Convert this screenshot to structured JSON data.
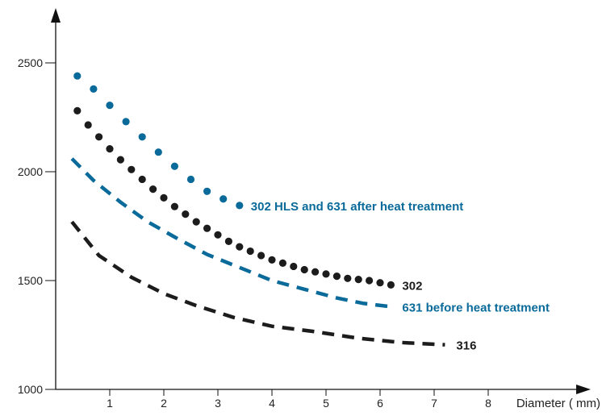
{
  "chart_data": {
    "type": "line",
    "title": "",
    "xlabel": "Diameter ( mm)",
    "ylabel": "",
    "xlim": [
      0,
      9.1
    ],
    "ylim": [
      1000,
      2750
    ],
    "x_ticks": [
      1,
      2,
      3,
      4,
      5,
      6,
      7,
      8
    ],
    "y_ticks": [
      1000,
      1500,
      2000,
      2500
    ],
    "grid": false,
    "legend": "inline labels at line ends",
    "series": [
      {
        "name": "302 HLS and 631 after heat treatment",
        "style": "dotted",
        "color": "#0a6a9a",
        "x": [
          0.4,
          0.7,
          1.0,
          1.3,
          1.6,
          1.9,
          2.2,
          2.5,
          2.8,
          3.1,
          3.4
        ],
        "y": [
          2440,
          2380,
          2305,
          2230,
          2160,
          2090,
          2025,
          1965,
          1910,
          1875,
          1845
        ]
      },
      {
        "name": "302",
        "style": "dotted",
        "color": "#1c1c1c",
        "x": [
          0.4,
          0.6,
          0.8,
          1.0,
          1.2,
          1.4,
          1.6,
          1.8,
          2.0,
          2.2,
          2.4,
          2.6,
          2.8,
          3.0,
          3.2,
          3.4,
          3.6,
          3.8,
          4.0,
          4.2,
          4.4,
          4.6,
          4.8,
          5.0,
          5.2,
          5.4,
          5.6,
          5.8,
          6.0,
          6.2
        ],
        "y": [
          2280,
          2215,
          2160,
          2105,
          2055,
          2010,
          1965,
          1920,
          1880,
          1840,
          1805,
          1770,
          1740,
          1710,
          1680,
          1655,
          1635,
          1615,
          1595,
          1580,
          1565,
          1550,
          1540,
          1530,
          1520,
          1510,
          1505,
          1500,
          1490,
          1480
        ]
      },
      {
        "name": "631 before heat treatment",
        "style": "dashed",
        "color": "#0a6a9a",
        "x": [
          0.3,
          0.7,
          1.2,
          1.7,
          2.2,
          2.8,
          3.4,
          4.0,
          4.6,
          5.2,
          5.7,
          6.2
        ],
        "y": [
          2060,
          1960,
          1860,
          1770,
          1700,
          1620,
          1560,
          1500,
          1460,
          1420,
          1395,
          1380
        ]
      },
      {
        "name": "316",
        "style": "dashed",
        "color": "#1c1c1c",
        "x": [
          0.3,
          0.8,
          1.4,
          2.0,
          2.6,
          3.3,
          4.0,
          4.8,
          5.6,
          6.4,
          7.2
        ],
        "y": [
          1770,
          1615,
          1515,
          1440,
          1385,
          1330,
          1290,
          1265,
          1235,
          1215,
          1205
        ]
      }
    ],
    "annotations": [
      {
        "text": "302 HLS and 631 after heat treatment",
        "series": 0,
        "color": "#0a6a9a"
      },
      {
        "text": "302",
        "series": 1,
        "color": "#1c1c1c"
      },
      {
        "text": "631 before heat treatment",
        "series": 2,
        "color": "#0a6a9a"
      },
      {
        "text": "316",
        "series": 3,
        "color": "#1c1c1c"
      }
    ]
  }
}
